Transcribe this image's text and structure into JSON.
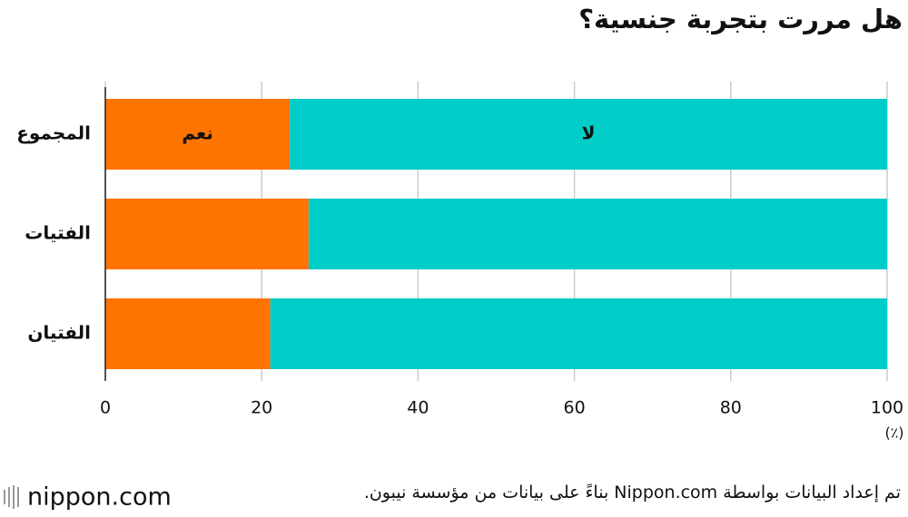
{
  "chart_data": {
    "type": "bar",
    "stacked": true,
    "orientation": "horizontal",
    "title": "هل مررت بتجربة جنسية؟",
    "categories": [
      "المجموع",
      "الفتيات",
      "الفتيان"
    ],
    "series": [
      {
        "name": "نعم",
        "color": "#ff7300",
        "values": [
          23.6,
          26.0,
          21.1
        ]
      },
      {
        "name": "لا",
        "color": "#00ccc8",
        "values": [
          76.4,
          74.0,
          78.9
        ]
      }
    ],
    "xlim": [
      0,
      100
    ],
    "xticks": [
      0,
      20,
      40,
      60,
      80,
      100
    ],
    "x_unit": "(٪)",
    "grid": true
  },
  "footer": {
    "source": "تم إعداد البيانات بواسطة Nippon.com بناءً على بيانات من مؤسسة نيبون.",
    "logo": "nippon.com"
  }
}
